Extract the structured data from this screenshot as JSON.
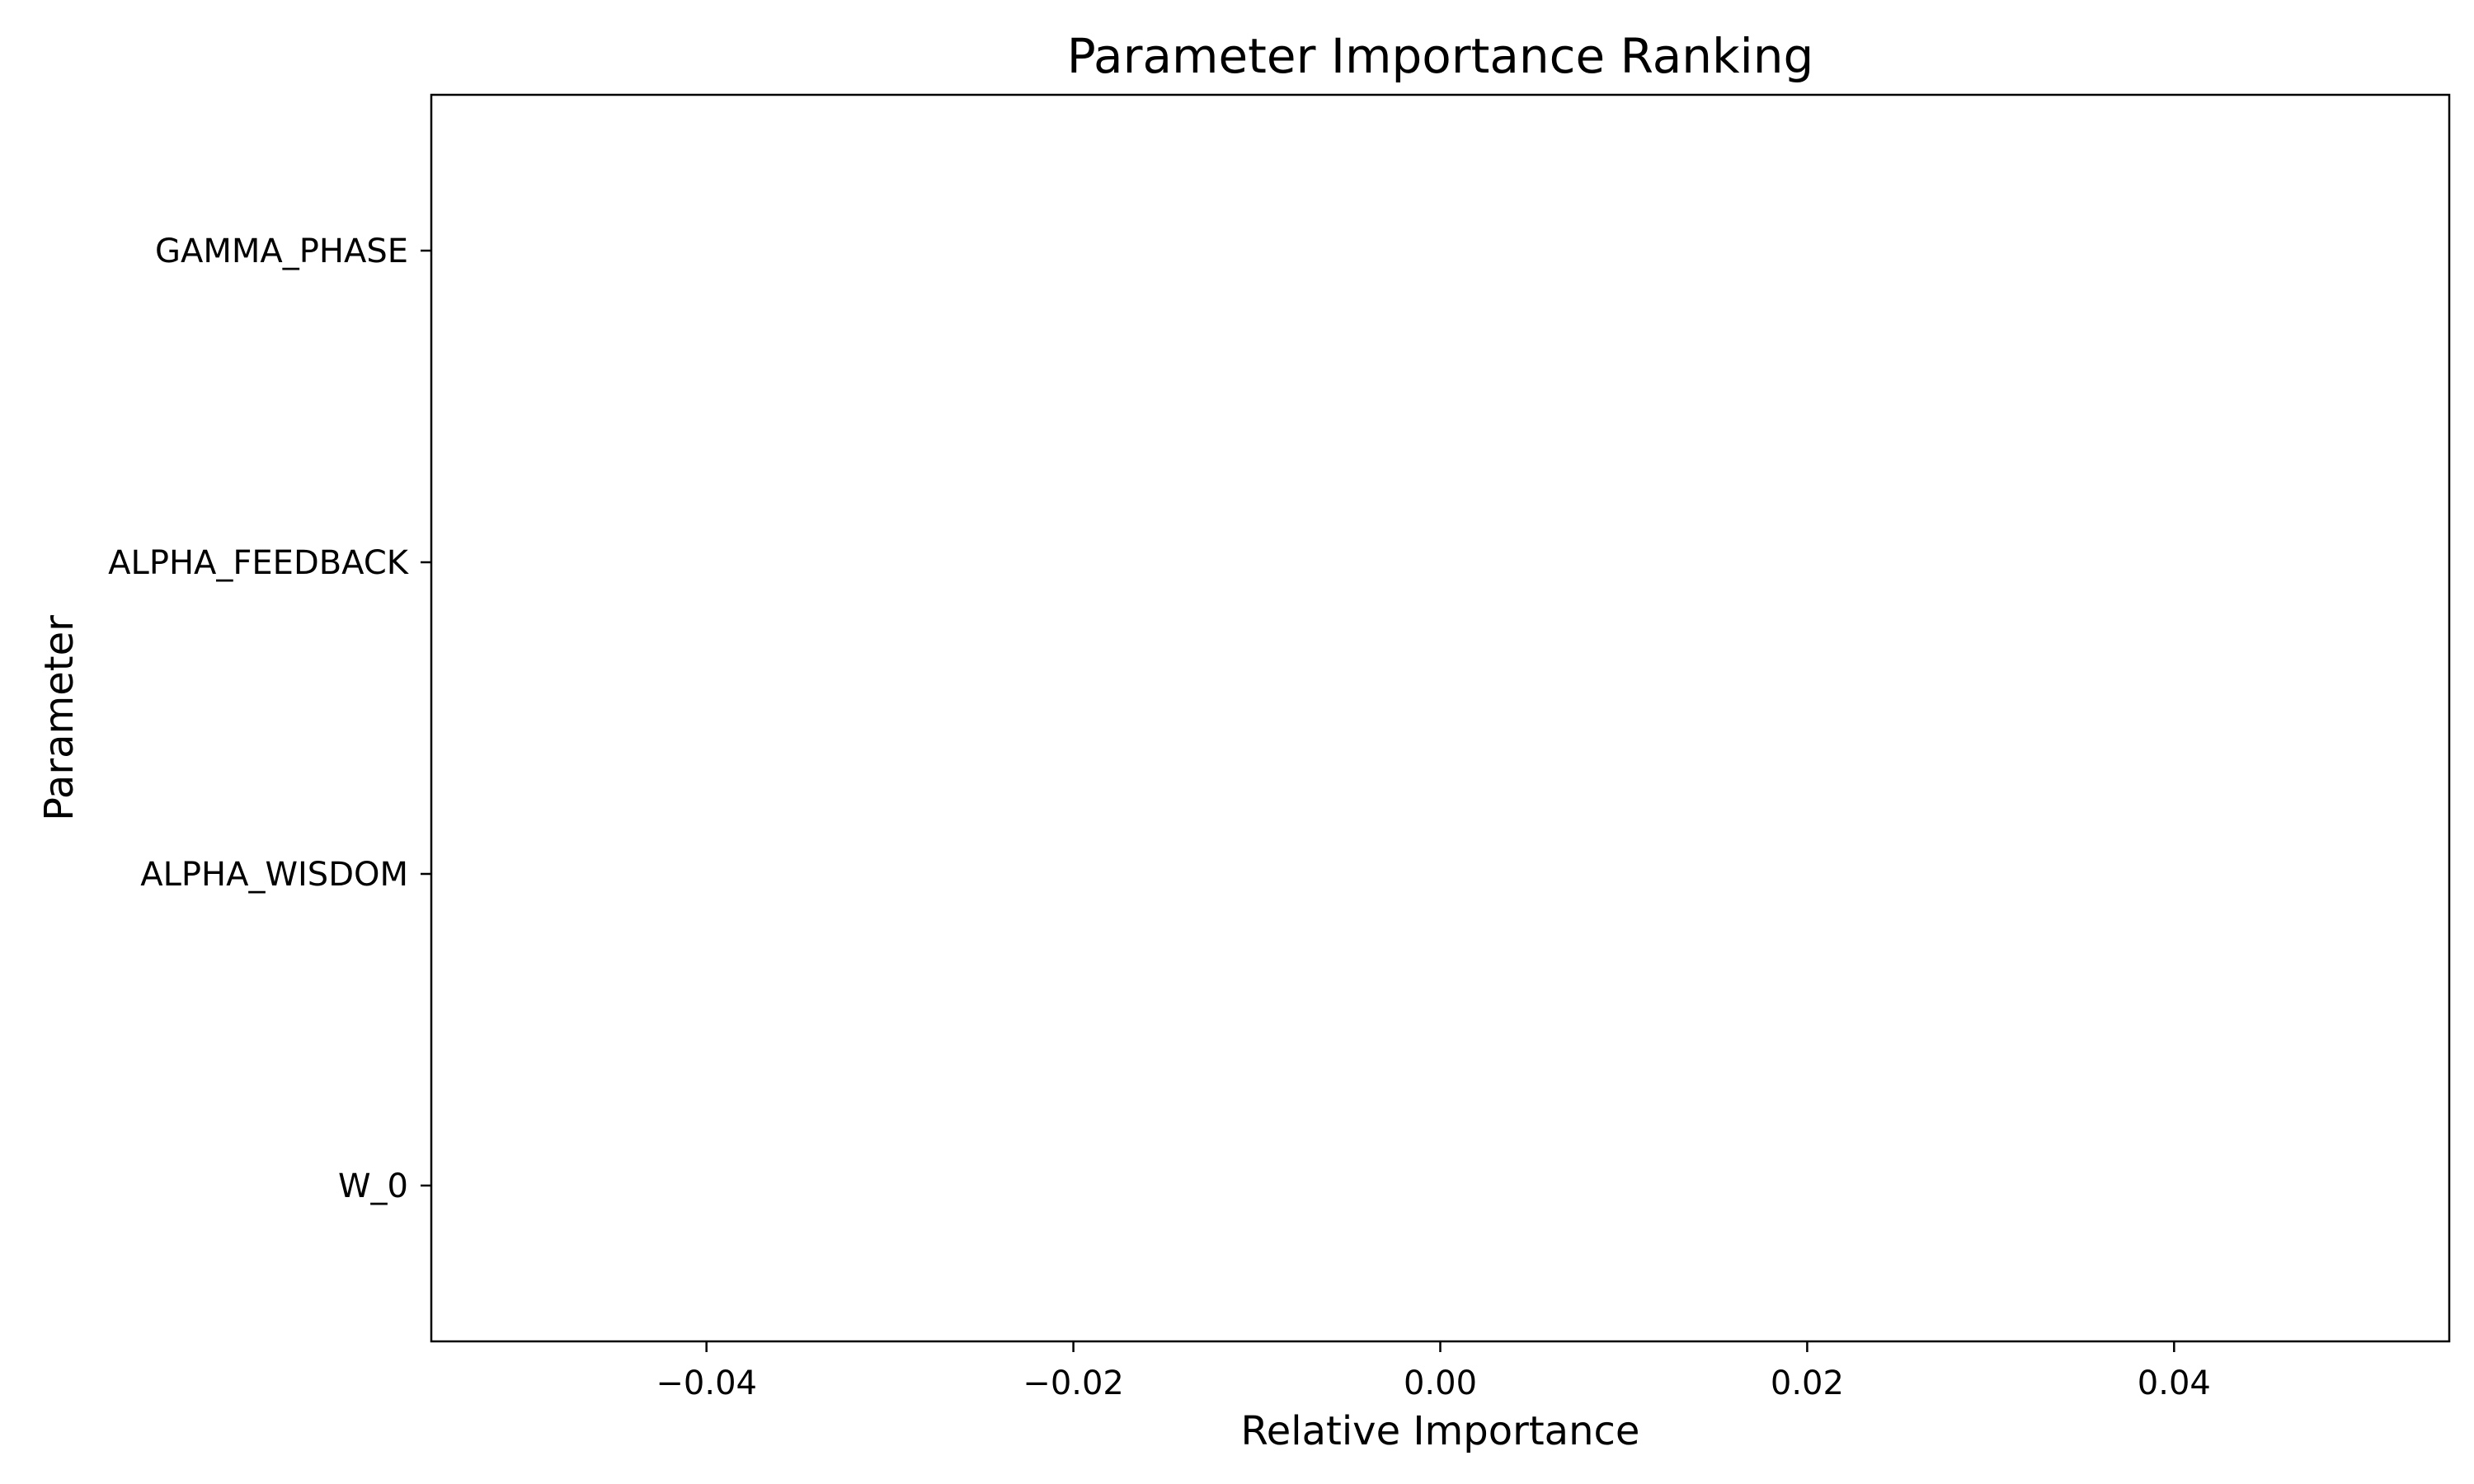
{
  "chart_data": {
    "type": "bar",
    "orientation": "horizontal",
    "title": "Parameter Importance Ranking",
    "xlabel": "Relative Importance",
    "ylabel": "Parameter",
    "categories": [
      "W_0",
      "ALPHA_WISDOM",
      "ALPHA_FEEDBACK",
      "GAMMA_PHASE"
    ],
    "values": [
      0,
      0,
      0,
      0
    ],
    "xlim": [
      -0.055,
      0.055
    ],
    "xticks": [
      -0.04,
      -0.02,
      0.0,
      0.02,
      0.04
    ],
    "xtick_labels": [
      "−0.04",
      "−0.02",
      "0.00",
      "0.02",
      "0.04"
    ],
    "grid": false,
    "legend": "none"
  }
}
